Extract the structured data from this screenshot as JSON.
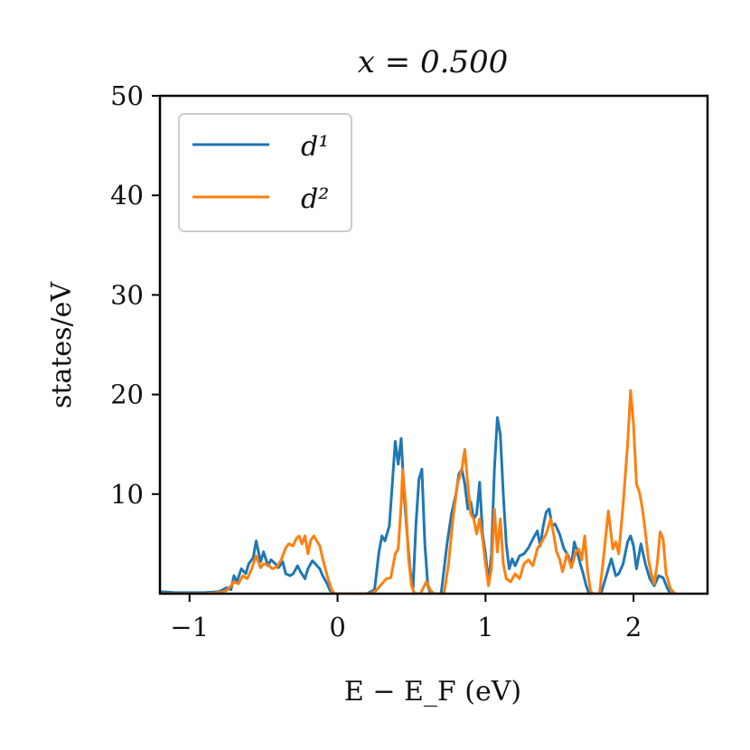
{
  "chart_data": {
    "type": "line",
    "title": "x = 0.500",
    "xlabel": "E − E_F (eV)",
    "ylabel": "states/eV",
    "xlim": [
      -1.2,
      2.5
    ],
    "ylim": [
      0,
      50
    ],
    "x_ticks": [
      -1,
      0,
      1,
      2
    ],
    "x_tick_labels": [
      "−1",
      "0",
      "1",
      "2"
    ],
    "y_ticks": [
      10,
      20,
      30,
      40,
      50
    ],
    "y_tick_labels": [
      "10",
      "20",
      "30",
      "40",
      "50"
    ],
    "grid": false,
    "legend_position": "top-left",
    "series": [
      {
        "name": "d¹",
        "color": "#1f77b4",
        "points": [
          [
            -1.2,
            0.2
          ],
          [
            -1.1,
            0.1
          ],
          [
            -1.0,
            0.1
          ],
          [
            -0.9,
            0.1
          ],
          [
            -0.8,
            0.2
          ],
          [
            -0.75,
            0.6
          ],
          [
            -0.72,
            0.4
          ],
          [
            -0.7,
            1.8
          ],
          [
            -0.68,
            1.2
          ],
          [
            -0.65,
            2.5
          ],
          [
            -0.62,
            2.0
          ],
          [
            -0.6,
            3.0
          ],
          [
            -0.57,
            3.6
          ],
          [
            -0.55,
            5.3
          ],
          [
            -0.52,
            3.2
          ],
          [
            -0.5,
            4.2
          ],
          [
            -0.47,
            2.8
          ],
          [
            -0.45,
            3.4
          ],
          [
            -0.42,
            3.0
          ],
          [
            -0.4,
            2.6
          ],
          [
            -0.37,
            3.2
          ],
          [
            -0.35,
            2.0
          ],
          [
            -0.32,
            1.8
          ],
          [
            -0.3,
            2.0
          ],
          [
            -0.27,
            2.8
          ],
          [
            -0.25,
            2.2
          ],
          [
            -0.22,
            1.5
          ],
          [
            -0.2,
            2.5
          ],
          [
            -0.17,
            3.3
          ],
          [
            -0.15,
            3.0
          ],
          [
            -0.12,
            2.5
          ],
          [
            -0.1,
            1.8
          ],
          [
            -0.07,
            1.0
          ],
          [
            -0.05,
            0.3
          ],
          [
            -0.02,
            0.0
          ],
          [
            0.2,
            0.0
          ],
          [
            0.25,
            0.4
          ],
          [
            0.28,
            4.2
          ],
          [
            0.3,
            5.8
          ],
          [
            0.32,
            5.3
          ],
          [
            0.35,
            6.8
          ],
          [
            0.37,
            11.0
          ],
          [
            0.39,
            15.3
          ],
          [
            0.41,
            13.0
          ],
          [
            0.43,
            15.6
          ],
          [
            0.45,
            10.0
          ],
          [
            0.47,
            6.0
          ],
          [
            0.49,
            2.5
          ],
          [
            0.51,
            0.5
          ],
          [
            0.53,
            7.0
          ],
          [
            0.55,
            11.5
          ],
          [
            0.57,
            12.5
          ],
          [
            0.59,
            5.0
          ],
          [
            0.61,
            0.8
          ],
          [
            0.63,
            0.0
          ],
          [
            0.7,
            0.0
          ],
          [
            0.74,
            5.0
          ],
          [
            0.77,
            8.0
          ],
          [
            0.8,
            10.0
          ],
          [
            0.82,
            12.0
          ],
          [
            0.84,
            12.5
          ],
          [
            0.86,
            11.0
          ],
          [
            0.88,
            8.5
          ],
          [
            0.9,
            9.2
          ],
          [
            0.92,
            7.5
          ],
          [
            0.94,
            8.0
          ],
          [
            0.96,
            11.2
          ],
          [
            0.98,
            6.0
          ],
          [
            1.0,
            4.0
          ],
          [
            1.02,
            1.0
          ],
          [
            1.04,
            4.0
          ],
          [
            1.06,
            12.5
          ],
          [
            1.08,
            17.7
          ],
          [
            1.1,
            16.0
          ],
          [
            1.12,
            10.0
          ],
          [
            1.14,
            5.0
          ],
          [
            1.16,
            2.5
          ],
          [
            1.18,
            3.5
          ],
          [
            1.2,
            2.8
          ],
          [
            1.23,
            3.8
          ],
          [
            1.26,
            4.0
          ],
          [
            1.29,
            4.6
          ],
          [
            1.32,
            5.5
          ],
          [
            1.35,
            6.3
          ],
          [
            1.37,
            4.8
          ],
          [
            1.39,
            6.8
          ],
          [
            1.41,
            8.2
          ],
          [
            1.43,
            8.5
          ],
          [
            1.45,
            6.8
          ],
          [
            1.47,
            7.0
          ],
          [
            1.5,
            6.0
          ],
          [
            1.53,
            4.5
          ],
          [
            1.56,
            3.8
          ],
          [
            1.58,
            2.8
          ],
          [
            1.6,
            5.2
          ],
          [
            1.62,
            4.2
          ],
          [
            1.64,
            3.0
          ],
          [
            1.66,
            2.0
          ],
          [
            1.68,
            0.8
          ],
          [
            1.7,
            0.0
          ],
          [
            1.78,
            0.0
          ],
          [
            1.82,
            2.0
          ],
          [
            1.85,
            3.5
          ],
          [
            1.88,
            1.8
          ],
          [
            1.9,
            2.0
          ],
          [
            1.93,
            3.0
          ],
          [
            1.96,
            5.2
          ],
          [
            1.98,
            5.8
          ],
          [
            2.0,
            4.8
          ],
          [
            2.02,
            2.5
          ],
          [
            2.05,
            5.0
          ],
          [
            2.08,
            3.0
          ],
          [
            2.11,
            1.5
          ],
          [
            2.14,
            0.8
          ],
          [
            2.17,
            1.8
          ],
          [
            2.2,
            1.6
          ],
          [
            2.23,
            0.5
          ],
          [
            2.25,
            0.0
          ]
        ]
      },
      {
        "name": "d²",
        "color": "#ff7f0e",
        "points": [
          [
            -1.2,
            0.0
          ],
          [
            -0.9,
            0.0
          ],
          [
            -0.8,
            0.1
          ],
          [
            -0.75,
            0.3
          ],
          [
            -0.72,
            0.8
          ],
          [
            -0.7,
            1.2
          ],
          [
            -0.67,
            1.0
          ],
          [
            -0.64,
            1.8
          ],
          [
            -0.61,
            1.5
          ],
          [
            -0.58,
            2.5
          ],
          [
            -0.55,
            3.8
          ],
          [
            -0.52,
            2.6
          ],
          [
            -0.5,
            3.0
          ],
          [
            -0.47,
            2.9
          ],
          [
            -0.44,
            2.5
          ],
          [
            -0.41,
            2.7
          ],
          [
            -0.38,
            3.4
          ],
          [
            -0.35,
            4.6
          ],
          [
            -0.33,
            5.0
          ],
          [
            -0.3,
            4.8
          ],
          [
            -0.28,
            5.5
          ],
          [
            -0.26,
            5.8
          ],
          [
            -0.24,
            5.0
          ],
          [
            -0.22,
            5.8
          ],
          [
            -0.2,
            4.0
          ],
          [
            -0.18,
            5.4
          ],
          [
            -0.16,
            5.8
          ],
          [
            -0.14,
            5.3
          ],
          [
            -0.12,
            4.8
          ],
          [
            -0.1,
            3.5
          ],
          [
            -0.07,
            1.8
          ],
          [
            -0.04,
            0.4
          ],
          [
            -0.02,
            0.0
          ],
          [
            0.22,
            0.0
          ],
          [
            0.26,
            0.3
          ],
          [
            0.3,
            1.0
          ],
          [
            0.33,
            1.5
          ],
          [
            0.36,
            1.6
          ],
          [
            0.39,
            4.0
          ],
          [
            0.41,
            4.5
          ],
          [
            0.43,
            9.0
          ],
          [
            0.44,
            12.5
          ],
          [
            0.46,
            9.0
          ],
          [
            0.48,
            3.5
          ],
          [
            0.5,
            0.8
          ],
          [
            0.52,
            0.0
          ],
          [
            0.56,
            0.0
          ],
          [
            0.6,
            1.2
          ],
          [
            0.63,
            0.3
          ],
          [
            0.65,
            0.0
          ],
          [
            0.72,
            0.0
          ],
          [
            0.75,
            3.0
          ],
          [
            0.78,
            7.5
          ],
          [
            0.81,
            11.0
          ],
          [
            0.84,
            12.5
          ],
          [
            0.86,
            14.5
          ],
          [
            0.88,
            11.0
          ],
          [
            0.9,
            8.0
          ],
          [
            0.92,
            7.5
          ],
          [
            0.94,
            6.0
          ],
          [
            0.96,
            7.5
          ],
          [
            0.98,
            5.5
          ],
          [
            1.0,
            3.0
          ],
          [
            1.02,
            0.8
          ],
          [
            1.04,
            2.5
          ],
          [
            1.06,
            8.5
          ],
          [
            1.08,
            4.2
          ],
          [
            1.1,
            7.5
          ],
          [
            1.12,
            3.0
          ],
          [
            1.14,
            1.5
          ],
          [
            1.17,
            1.2
          ],
          [
            1.2,
            2.0
          ],
          [
            1.23,
            1.5
          ],
          [
            1.26,
            3.0
          ],
          [
            1.29,
            3.4
          ],
          [
            1.32,
            2.8
          ],
          [
            1.35,
            4.5
          ],
          [
            1.38,
            5.2
          ],
          [
            1.41,
            6.0
          ],
          [
            1.44,
            7.5
          ],
          [
            1.46,
            6.0
          ],
          [
            1.48,
            4.2
          ],
          [
            1.5,
            3.5
          ],
          [
            1.52,
            2.2
          ],
          [
            1.55,
            4.0
          ],
          [
            1.58,
            2.6
          ],
          [
            1.61,
            4.2
          ],
          [
            1.63,
            4.5
          ],
          [
            1.65,
            3.4
          ],
          [
            1.67,
            5.8
          ],
          [
            1.69,
            2.2
          ],
          [
            1.71,
            0.2
          ],
          [
            1.73,
            0.0
          ],
          [
            1.77,
            0.0
          ],
          [
            1.8,
            4.0
          ],
          [
            1.83,
            8.3
          ],
          [
            1.86,
            4.5
          ],
          [
            1.88,
            5.2
          ],
          [
            1.9,
            4.0
          ],
          [
            1.93,
            9.0
          ],
          [
            1.96,
            15.0
          ],
          [
            1.98,
            20.4
          ],
          [
            2.0,
            17.0
          ],
          [
            2.02,
            11.0
          ],
          [
            2.04,
            10.2
          ],
          [
            2.06,
            8.5
          ],
          [
            2.08,
            6.2
          ],
          [
            2.1,
            3.5
          ],
          [
            2.12,
            2.0
          ],
          [
            2.14,
            1.0
          ],
          [
            2.16,
            3.0
          ],
          [
            2.18,
            6.2
          ],
          [
            2.2,
            5.5
          ],
          [
            2.22,
            2.0
          ],
          [
            2.25,
            0.5
          ],
          [
            2.28,
            0.0
          ]
        ]
      }
    ]
  }
}
